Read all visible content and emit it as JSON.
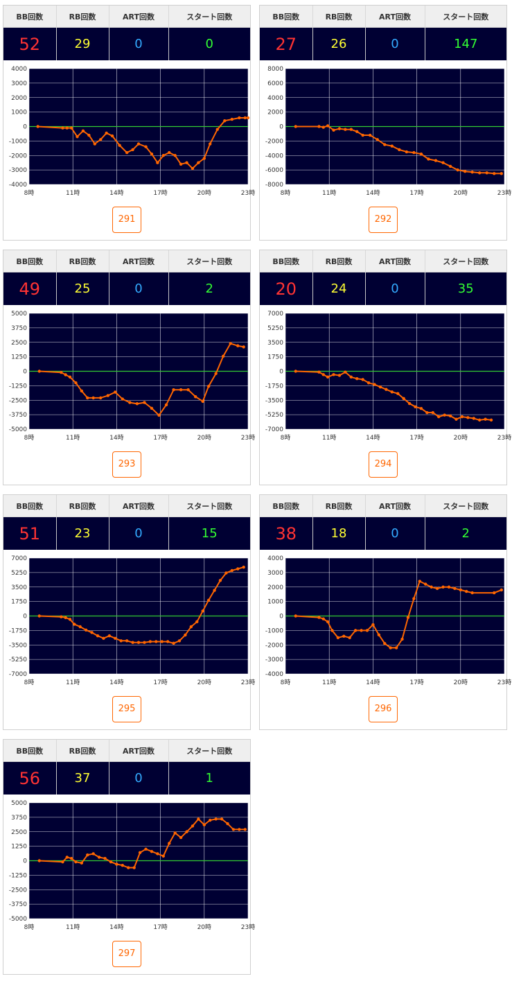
{
  "headers": {
    "bb": "BB回数",
    "rb": "RB回数",
    "art": "ART回数",
    "start": "スタート回数"
  },
  "x_ticks": [
    "8時",
    "11時",
    "14時",
    "17時",
    "20時",
    "23時"
  ],
  "colors": {
    "plot_bg": "#000033",
    "grid": "#ffffff",
    "line": "#ff6600",
    "zero_line": "#33cc33",
    "bb": "#ff3333",
    "rb": "#ffff33",
    "art": "#33aaff",
    "start": "#33ff33",
    "button": "#ff6600"
  },
  "machines": [
    {
      "id": "291",
      "bb": "52",
      "rb": "29",
      "art": "0",
      "start": "0",
      "chart_data": {
        "type": "line",
        "x_range": [
          8,
          23
        ],
        "ylim": [
          -4000,
          4000
        ],
        "y_ticks": [
          "4000",
          "3000",
          "2000",
          "1000",
          "0",
          "-1000",
          "-2000",
          "-3000",
          "-4000"
        ],
        "x": [
          8.6,
          10.3,
          10.6,
          10.9,
          11.3,
          11.7,
          12.1,
          12.5,
          12.9,
          13.3,
          13.7,
          14.2,
          14.7,
          15.1,
          15.5,
          16.0,
          16.4,
          16.8,
          17.2,
          17.6,
          18.0,
          18.4,
          18.8,
          19.2,
          19.6,
          20.0,
          20.4,
          20.9,
          21.4,
          21.9,
          22.4,
          22.8,
          23.0
        ],
        "values": [
          0,
          -100,
          -100,
          -100,
          -700,
          -300,
          -600,
          -1200,
          -900,
          -450,
          -650,
          -1300,
          -1800,
          -1600,
          -1200,
          -1400,
          -1900,
          -2500,
          -2000,
          -1800,
          -2000,
          -2600,
          -2500,
          -2900,
          -2500,
          -2200,
          -1200,
          -200,
          400,
          500,
          600,
          600,
          600
        ]
      }
    },
    {
      "id": "292",
      "bb": "27",
      "rb": "26",
      "art": "0",
      "start": "147",
      "chart_data": {
        "type": "line",
        "x_range": [
          8,
          23
        ],
        "ylim": [
          -8000,
          8000
        ],
        "y_ticks": [
          "8000",
          "6000",
          "4000",
          "2000",
          "0",
          "-2000",
          "-4000",
          "-6000",
          "-8000"
        ],
        "x": [
          8.7,
          10.3,
          10.6,
          10.9,
          11.3,
          11.7,
          12.1,
          12.5,
          12.9,
          13.3,
          13.8,
          14.3,
          14.8,
          15.3,
          15.8,
          16.3,
          16.8,
          17.3,
          17.8,
          18.3,
          18.8,
          19.3,
          19.8,
          20.3,
          20.8,
          21.3,
          21.8,
          22.3,
          22.8
        ],
        "values": [
          0,
          0,
          -100,
          100,
          -500,
          -300,
          -400,
          -400,
          -700,
          -1200,
          -1200,
          -1800,
          -2500,
          -2700,
          -3200,
          -3500,
          -3600,
          -3800,
          -4500,
          -4700,
          -5000,
          -5500,
          -6000,
          -6200,
          -6300,
          -6400,
          -6400,
          -6500,
          -6500
        ]
      }
    },
    {
      "id": "293",
      "bb": "49",
      "rb": "25",
      "art": "0",
      "start": "2",
      "chart_data": {
        "type": "line",
        "x_range": [
          8,
          23
        ],
        "ylim": [
          -5000,
          5000
        ],
        "y_ticks": [
          "5000",
          "3750",
          "2500",
          "1250",
          "0",
          "-1250",
          "-2500",
          "-3750",
          "-5000"
        ],
        "x": [
          8.7,
          10.2,
          10.5,
          10.8,
          11.2,
          11.6,
          12.0,
          12.4,
          12.9,
          13.4,
          13.9,
          14.4,
          14.9,
          15.4,
          15.9,
          16.4,
          16.9,
          17.4,
          17.9,
          18.4,
          18.9,
          19.4,
          19.9,
          20.3,
          20.8,
          21.3,
          21.8,
          22.3,
          22.7
        ],
        "values": [
          0,
          -100,
          -300,
          -500,
          -1000,
          -1700,
          -2300,
          -2300,
          -2300,
          -2100,
          -1800,
          -2400,
          -2700,
          -2800,
          -2700,
          -3200,
          -3800,
          -2900,
          -1600,
          -1600,
          -1600,
          -2200,
          -2600,
          -1300,
          -200,
          1300,
          2400,
          2200,
          2100
        ]
      }
    },
    {
      "id": "294",
      "bb": "20",
      "rb": "24",
      "art": "0",
      "start": "35",
      "chart_data": {
        "type": "line",
        "x_range": [
          8,
          23
        ],
        "ylim": [
          -7000,
          7000
        ],
        "y_ticks": [
          "7000",
          "5250",
          "3500",
          "1750",
          "0",
          "-1750",
          "-3500",
          "-5250",
          "-7000"
        ],
        "x": [
          8.7,
          10.3,
          10.6,
          10.9,
          11.3,
          11.7,
          12.1,
          12.5,
          12.9,
          13.3,
          13.7,
          14.1,
          14.5,
          14.9,
          15.3,
          15.7,
          16.1,
          16.5,
          16.9,
          17.3,
          17.7,
          18.1,
          18.5,
          18.9,
          19.3,
          19.7,
          20.1,
          20.5,
          20.9,
          21.3,
          21.7,
          22.1
        ],
        "values": [
          0,
          -100,
          -400,
          -700,
          -400,
          -500,
          -100,
          -700,
          -900,
          -1000,
          -1400,
          -1600,
          -1900,
          -2200,
          -2500,
          -2700,
          -3300,
          -3900,
          -4300,
          -4500,
          -5000,
          -5000,
          -5500,
          -5300,
          -5400,
          -5800,
          -5500,
          -5600,
          -5700,
          -5900,
          -5800,
          -5900
        ]
      }
    },
    {
      "id": "295",
      "bb": "51",
      "rb": "23",
      "art": "0",
      "start": "15",
      "chart_data": {
        "type": "line",
        "x_range": [
          8,
          23
        ],
        "ylim": [
          -7000,
          7000
        ],
        "y_ticks": [
          "7000",
          "5250",
          "3500",
          "1750",
          "0",
          "-1750",
          "-3500",
          "-5250",
          "-7000"
        ],
        "x": [
          8.7,
          10.2,
          10.5,
          10.8,
          11.1,
          11.5,
          11.9,
          12.3,
          12.7,
          13.1,
          13.5,
          13.9,
          14.3,
          14.7,
          15.1,
          15.5,
          15.9,
          16.3,
          16.7,
          17.1,
          17.5,
          17.9,
          18.3,
          18.7,
          19.1,
          19.5,
          19.9,
          20.3,
          20.7,
          21.1,
          21.5,
          21.9,
          22.3,
          22.7
        ],
        "values": [
          0,
          -100,
          -200,
          -400,
          -1000,
          -1300,
          -1700,
          -2000,
          -2400,
          -2700,
          -2400,
          -2700,
          -3000,
          -3000,
          -3200,
          -3200,
          -3200,
          -3100,
          -3100,
          -3100,
          -3100,
          -3300,
          -3000,
          -2300,
          -1300,
          -700,
          600,
          1900,
          3100,
          4300,
          5200,
          5500,
          5700,
          5900
        ]
      }
    },
    {
      "id": "296",
      "bb": "38",
      "rb": "18",
      "art": "0",
      "start": "2",
      "chart_data": {
        "type": "line",
        "x_range": [
          8,
          23
        ],
        "ylim": [
          -4000,
          4000
        ],
        "y_ticks": [
          "4000",
          "3000",
          "2000",
          "1000",
          "0",
          "-1000",
          "-2000",
          "-3000",
          "-4000"
        ],
        "x": [
          8.7,
          10.3,
          10.6,
          10.9,
          11.2,
          11.6,
          12.0,
          12.4,
          12.8,
          13.2,
          13.6,
          14.0,
          14.4,
          14.8,
          15.2,
          15.6,
          16.0,
          16.4,
          16.8,
          17.2,
          17.6,
          18.0,
          18.4,
          18.8,
          19.2,
          19.6,
          20.0,
          20.4,
          20.8,
          22.3,
          22.8
        ],
        "values": [
          0,
          -100,
          -200,
          -400,
          -1000,
          -1500,
          -1400,
          -1500,
          -1000,
          -1000,
          -1000,
          -600,
          -1300,
          -1900,
          -2200,
          -2200,
          -1600,
          -100,
          1200,
          2400,
          2200,
          2000,
          1900,
          2000,
          2000,
          1900,
          1800,
          1700,
          1600,
          1600,
          1800
        ]
      }
    },
    {
      "id": "297",
      "bb": "56",
      "rb": "37",
      "art": "0",
      "start": "1",
      "chart_data": {
        "type": "line",
        "x_range": [
          8,
          23
        ],
        "ylim": [
          -5000,
          5000
        ],
        "y_ticks": [
          "5000",
          "3750",
          "2500",
          "1250",
          "0",
          "-1250",
          "-2500",
          "-3750",
          "-5000"
        ],
        "x": [
          8.7,
          10.3,
          10.6,
          10.9,
          11.2,
          11.6,
          12.0,
          12.4,
          12.8,
          13.2,
          13.6,
          14.0,
          14.4,
          14.8,
          15.2,
          15.6,
          16.0,
          16.4,
          16.8,
          17.2,
          17.6,
          18.0,
          18.4,
          18.8,
          19.2,
          19.6,
          20.0,
          20.4,
          20.8,
          21.2,
          21.6,
          22.0,
          22.4,
          22.8
        ],
        "values": [
          0,
          -100,
          300,
          200,
          -100,
          -200,
          500,
          600,
          300,
          200,
          -100,
          -300,
          -400,
          -600,
          -600,
          700,
          1000,
          800,
          600,
          400,
          1500,
          2400,
          2000,
          2500,
          3000,
          3600,
          3100,
          3500,
          3600,
          3600,
          3200,
          2700,
          2700,
          2700
        ]
      }
    }
  ]
}
